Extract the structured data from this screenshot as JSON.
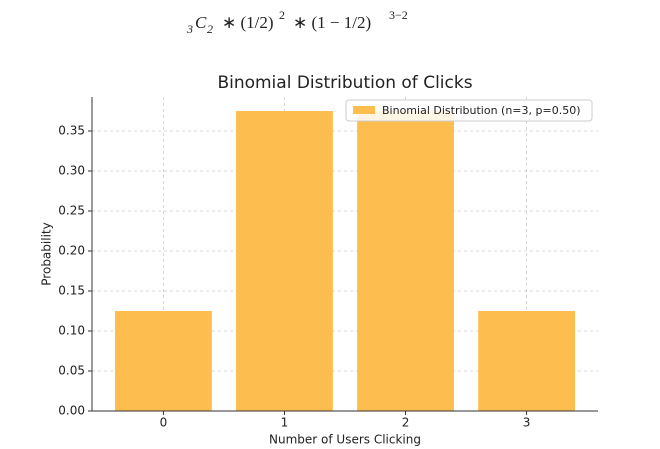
{
  "formula": {
    "pre_sub": "3",
    "base": "C",
    "sub": "2",
    "term1": "∗ (1/2)",
    "sup1": "2",
    "term2": "∗ (1 − 1/2)",
    "sup2": "3−2"
  },
  "chart_data": {
    "type": "bar",
    "title": "Binomial Distribution of Clicks",
    "x_label": "Number of Users Clicking",
    "y_label": "Probability",
    "x": [
      0,
      1,
      2,
      3
    ],
    "xlim": [
      -0.59,
      3.59
    ],
    "xticks": [
      0,
      1,
      2,
      3
    ],
    "series": [
      {
        "name": "Binomial Distribution (n=3, p=0.50)",
        "color": "#fdbe4f",
        "values": [
          0.125,
          0.375,
          0.375,
          0.125
        ]
      }
    ],
    "ylim": [
      0,
      0.3925
    ],
    "yticks": [
      {
        "value": 0,
        "label": "0.00"
      },
      {
        "value": 0.05,
        "label": "0.05"
      },
      {
        "value": 0.1,
        "label": "0.10"
      },
      {
        "value": 0.15,
        "label": "0.15"
      },
      {
        "value": 0.2,
        "label": "0.20"
      },
      {
        "value": 0.25,
        "label": "0.25"
      },
      {
        "value": 0.3,
        "label": "0.30"
      },
      {
        "value": 0.35,
        "label": "0.35"
      }
    ],
    "grid": true,
    "legend": "upper right"
  }
}
